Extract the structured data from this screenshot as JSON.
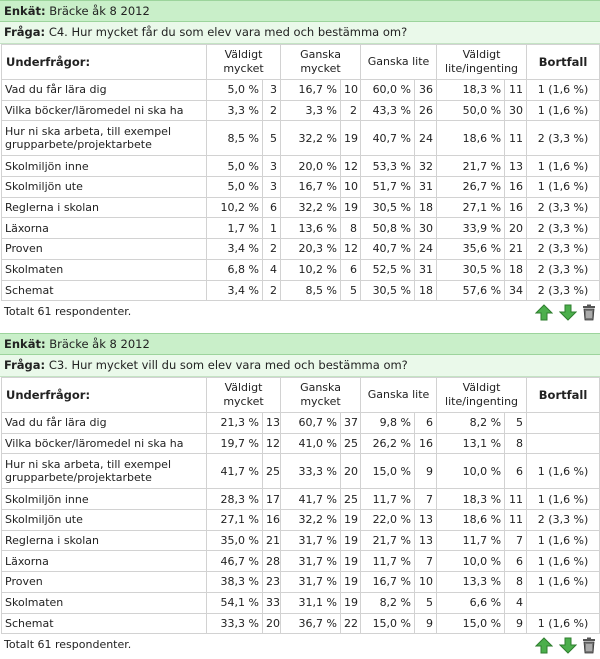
{
  "surveys": [
    {
      "enkat_label": "Enkät:",
      "enkat_value": "Bräcke åk 8 2012",
      "fraga_label": "Fråga:",
      "fraga_value": "C4. Hur mycket får du som elev vara med och bestämma om?",
      "columns": {
        "sub": "Underfrågor:",
        "c1a": "Väldigt",
        "c1b": "mycket",
        "c2a": "Ganska",
        "c2b": "mycket",
        "c3": "Ganska lite",
        "c4a": "Väldigt",
        "c4b": "lite/ingenting",
        "bort": "Bortfall"
      },
      "rows": [
        {
          "label": "Vad du får lära dig",
          "p1": "5,0 %",
          "n1": "3",
          "p2": "16,7 %",
          "n2": "10",
          "p3": "60,0 %",
          "n3": "36",
          "p4": "18,3 %",
          "n4": "11",
          "b": "1 (1,6 %)"
        },
        {
          "label": "Vilka böcker/läromedel ni ska ha",
          "p1": "3,3 %",
          "n1": "2",
          "p2": "3,3 %",
          "n2": "2",
          "p3": "43,3 %",
          "n3": "26",
          "p4": "50,0 %",
          "n4": "30",
          "b": "1 (1,6 %)"
        },
        {
          "label": "Hur ni ska arbeta, till exempel grupparbete/projektarbete",
          "p1": "8,5 %",
          "n1": "5",
          "p2": "32,2 %",
          "n2": "19",
          "p3": "40,7 %",
          "n3": "24",
          "p4": "18,6 %",
          "n4": "11",
          "b": "2 (3,3 %)"
        },
        {
          "label": "Skolmiljön inne",
          "p1": "5,0 %",
          "n1": "3",
          "p2": "20,0 %",
          "n2": "12",
          "p3": "53,3 %",
          "n3": "32",
          "p4": "21,7 %",
          "n4": "13",
          "b": "1 (1,6 %)"
        },
        {
          "label": "Skolmiljön ute",
          "p1": "5,0 %",
          "n1": "3",
          "p2": "16,7 %",
          "n2": "10",
          "p3": "51,7 %",
          "n3": "31",
          "p4": "26,7 %",
          "n4": "16",
          "b": "1 (1,6 %)"
        },
        {
          "label": "Reglerna i skolan",
          "p1": "10,2 %",
          "n1": "6",
          "p2": "32,2 %",
          "n2": "19",
          "p3": "30,5 %",
          "n3": "18",
          "p4": "27,1 %",
          "n4": "16",
          "b": "2 (3,3 %)"
        },
        {
          "label": "Läxorna",
          "p1": "1,7 %",
          "n1": "1",
          "p2": "13,6 %",
          "n2": "8",
          "p3": "50,8 %",
          "n3": "30",
          "p4": "33,9 %",
          "n4": "20",
          "b": "2 (3,3 %)"
        },
        {
          "label": "Proven",
          "p1": "3,4 %",
          "n1": "2",
          "p2": "20,3 %",
          "n2": "12",
          "p3": "40,7 %",
          "n3": "24",
          "p4": "35,6 %",
          "n4": "21",
          "b": "2 (3,3 %)"
        },
        {
          "label": "Skolmaten",
          "p1": "6,8 %",
          "n1": "4",
          "p2": "10,2 %",
          "n2": "6",
          "p3": "52,5 %",
          "n3": "31",
          "p4": "30,5 %",
          "n4": "18",
          "b": "2 (3,3 %)"
        },
        {
          "label": "Schemat",
          "p1": "3,4 %",
          "n1": "2",
          "p2": "8,5 %",
          "n2": "5",
          "p3": "30,5 %",
          "n3": "18",
          "p4": "57,6 %",
          "n4": "34",
          "b": "2 (3,3 %)"
        }
      ],
      "footer": "Totalt 61 respondenter."
    },
    {
      "enkat_label": "Enkät:",
      "enkat_value": "Bräcke åk 8 2012",
      "fraga_label": "Fråga:",
      "fraga_value": "C3. Hur mycket vill du som elev vara med och bestämma om?",
      "columns": {
        "sub": "Underfrågor:",
        "c1a": "Väldigt",
        "c1b": "mycket",
        "c2a": "Ganska",
        "c2b": "mycket",
        "c3": "Ganska lite",
        "c4a": "Väldigt",
        "c4b": "lite/ingenting",
        "bort": "Bortfall"
      },
      "rows": [
        {
          "label": "Vad du får lära dig",
          "p1": "21,3 %",
          "n1": "13",
          "p2": "60,7 %",
          "n2": "37",
          "p3": "9,8 %",
          "n3": "6",
          "p4": "8,2 %",
          "n4": "5",
          "b": ""
        },
        {
          "label": "Vilka böcker/läromedel ni ska ha",
          "p1": "19,7 %",
          "n1": "12",
          "p2": "41,0 %",
          "n2": "25",
          "p3": "26,2 %",
          "n3": "16",
          "p4": "13,1 %",
          "n4": "8",
          "b": ""
        },
        {
          "label": "Hur ni ska arbeta, till exempel grupparbete/projektarbete",
          "p1": "41,7 %",
          "n1": "25",
          "p2": "33,3 %",
          "n2": "20",
          "p3": "15,0 %",
          "n3": "9",
          "p4": "10,0 %",
          "n4": "6",
          "b": "1 (1,6 %)"
        },
        {
          "label": "Skolmiljön inne",
          "p1": "28,3 %",
          "n1": "17",
          "p2": "41,7 %",
          "n2": "25",
          "p3": "11,7 %",
          "n3": "7",
          "p4": "18,3 %",
          "n4": "11",
          "b": "1 (1,6 %)"
        },
        {
          "label": "Skolmiljön ute",
          "p1": "27,1 %",
          "n1": "16",
          "p2": "32,2 %",
          "n2": "19",
          "p3": "22,0 %",
          "n3": "13",
          "p4": "18,6 %",
          "n4": "11",
          "b": "2 (3,3 %)"
        },
        {
          "label": "Reglerna i skolan",
          "p1": "35,0 %",
          "n1": "21",
          "p2": "31,7 %",
          "n2": "19",
          "p3": "21,7 %",
          "n3": "13",
          "p4": "11,7 %",
          "n4": "7",
          "b": "1 (1,6 %)"
        },
        {
          "label": "Läxorna",
          "p1": "46,7 %",
          "n1": "28",
          "p2": "31,7 %",
          "n2": "19",
          "p3": "11,7 %",
          "n3": "7",
          "p4": "10,0 %",
          "n4": "6",
          "b": "1 (1,6 %)"
        },
        {
          "label": "Proven",
          "p1": "38,3 %",
          "n1": "23",
          "p2": "31,7 %",
          "n2": "19",
          "p3": "16,7 %",
          "n3": "10",
          "p4": "13,3 %",
          "n4": "8",
          "b": "1 (1,6 %)"
        },
        {
          "label": "Skolmaten",
          "p1": "54,1 %",
          "n1": "33",
          "p2": "31,1 %",
          "n2": "19",
          "p3": "8,2 %",
          "n3": "5",
          "p4": "6,6 %",
          "n4": "4",
          "b": ""
        },
        {
          "label": "Schemat",
          "p1": "33,3 %",
          "n1": "20",
          "p2": "36,7 %",
          "n2": "22",
          "p3": "15,0 %",
          "n3": "9",
          "p4": "15,0 %",
          "n4": "9",
          "b": "1 (1,6 %)"
        }
      ],
      "footer": "Totalt 61 respondenter."
    }
  ],
  "icons": {
    "move_up": "arrow-up-icon",
    "move_down": "arrow-down-icon",
    "delete": "trash-icon"
  },
  "colors": {
    "enkat_bg": "#c9efc9",
    "fraga_bg": "#eaf9ea",
    "arrow_green": "#3f9b3f"
  }
}
